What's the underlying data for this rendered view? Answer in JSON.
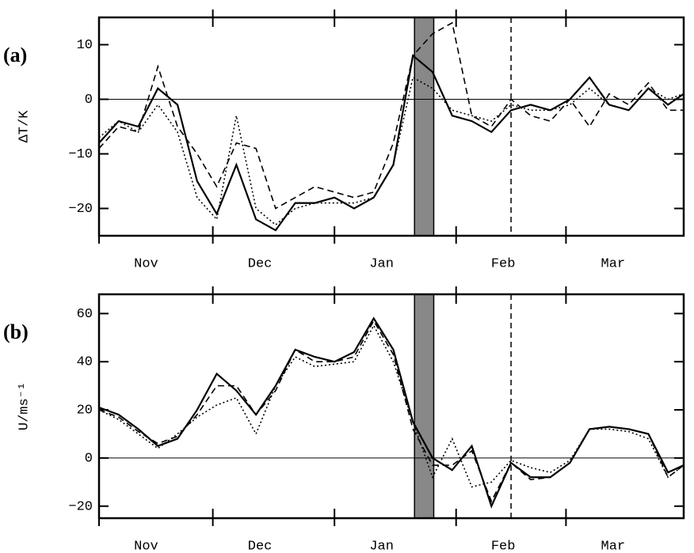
{
  "chart_data": [
    {
      "type": "line",
      "panel_label": "(a)",
      "ylabel": "ΔT/K",
      "x": [
        1,
        6,
        11,
        16,
        21,
        26,
        31,
        36,
        41,
        46,
        51,
        56,
        61,
        66,
        71,
        76,
        81,
        86,
        91,
        96,
        101,
        106,
        111,
        116,
        121,
        126,
        131,
        136,
        141,
        146,
        150
      ],
      "xlim": [
        1,
        150
      ],
      "xticks": [
        {
          "value": 13,
          "label": "Nov"
        },
        {
          "value": 42,
          "label": "Dec"
        },
        {
          "value": 73,
          "label": "Jan"
        },
        {
          "value": 104,
          "label": "Feb"
        },
        {
          "value": 132,
          "label": "Mar"
        }
      ],
      "month_boundaries": [
        30,
        61,
        92,
        120
      ],
      "ylim": [
        -25,
        15
      ],
      "yticks": [
        {
          "value": -20,
          "label": "−20"
        },
        {
          "value": -10,
          "label": "−10"
        },
        0,
        10
      ],
      "hline": 0,
      "shaded_region": [
        81.4,
        86.3
      ],
      "shade_color": "#888888",
      "vline": 106,
      "series": [
        {
          "color": "#000000",
          "dash": "solid",
          "values": [
            -8,
            -4,
            -5,
            2,
            -1,
            -15,
            -21,
            -12,
            -22,
            -24,
            -19,
            -19,
            -18,
            -20,
            -18,
            -12,
            8,
            5,
            -3,
            -4,
            -6,
            -2,
            -1,
            -2,
            0,
            4,
            -1,
            -2,
            2,
            -1,
            1
          ]
        },
        {
          "color": "#000000",
          "dash": "dashed",
          "values": [
            -9,
            -5,
            -6,
            6,
            -5,
            -10,
            -16,
            -8,
            -9,
            -20,
            -18,
            -16,
            -17,
            -18,
            -17,
            -8,
            8,
            12,
            14,
            -3,
            -5,
            0,
            -3,
            -4,
            0,
            -5,
            1,
            -1,
            3,
            -2,
            -2
          ]
        },
        {
          "color": "#000000",
          "dash": "dotted",
          "values": [
            -7,
            -4,
            -6,
            -1,
            -6,
            -18,
            -22,
            -3,
            -20,
            -23,
            -20,
            -19,
            -19,
            -19,
            -18,
            -12,
            4,
            2,
            -2,
            -3,
            -4,
            -1,
            -2,
            -2,
            -1,
            2,
            -1,
            -2,
            2,
            0,
            1
          ]
        }
      ]
    },
    {
      "type": "line",
      "panel_label": "(b)",
      "ylabel": "U/ms⁻¹",
      "x": [
        1,
        6,
        11,
        16,
        21,
        26,
        31,
        36,
        41,
        46,
        51,
        56,
        61,
        66,
        71,
        76,
        81,
        86,
        91,
        96,
        101,
        106,
        111,
        116,
        121,
        126,
        131,
        136,
        141,
        146,
        150
      ],
      "xlim": [
        1,
        150
      ],
      "xticks": [
        {
          "value": 13,
          "label": "Nov"
        },
        {
          "value": 42,
          "label": "Dec"
        },
        {
          "value": 73,
          "label": "Jan"
        },
        {
          "value": 104,
          "label": "Feb"
        },
        {
          "value": 132,
          "label": "Mar"
        }
      ],
      "month_boundaries": [
        30,
        61,
        92,
        120
      ],
      "ylim": [
        -25,
        68
      ],
      "yticks": [
        {
          "value": -20,
          "label": "−20"
        },
        0,
        20,
        40,
        60
      ],
      "hline": 0,
      "shaded_region": [
        81.4,
        86.3
      ],
      "shade_color": "#888888",
      "vline": 106,
      "series": [
        {
          "color": "#000000",
          "dash": "solid",
          "values": [
            21,
            18,
            12,
            5,
            8,
            20,
            35,
            28,
            18,
            30,
            45,
            42,
            40,
            44,
            58,
            45,
            15,
            0,
            -5,
            5,
            -20,
            -2,
            -8,
            -8,
            -2,
            12,
            13,
            12,
            10,
            -6,
            -3
          ]
        },
        {
          "color": "#000000",
          "dash": "dashed",
          "values": [
            20,
            17,
            11,
            6,
            9,
            18,
            30,
            30,
            18,
            28,
            45,
            40,
            40,
            42,
            57,
            43,
            12,
            -3,
            -3,
            3,
            -18,
            -2,
            -9,
            -8,
            -2,
            12,
            13,
            12,
            10,
            -8,
            -3
          ]
        },
        {
          "color": "#000000",
          "dash": "dotted",
          "values": [
            20,
            16,
            10,
            4,
            10,
            17,
            22,
            25,
            10,
            30,
            42,
            38,
            39,
            40,
            55,
            40,
            15,
            -8,
            8,
            -12,
            -10,
            -1,
            -4,
            -6,
            -1,
            12,
            12,
            11,
            8,
            -8,
            -3
          ]
        }
      ]
    }
  ]
}
